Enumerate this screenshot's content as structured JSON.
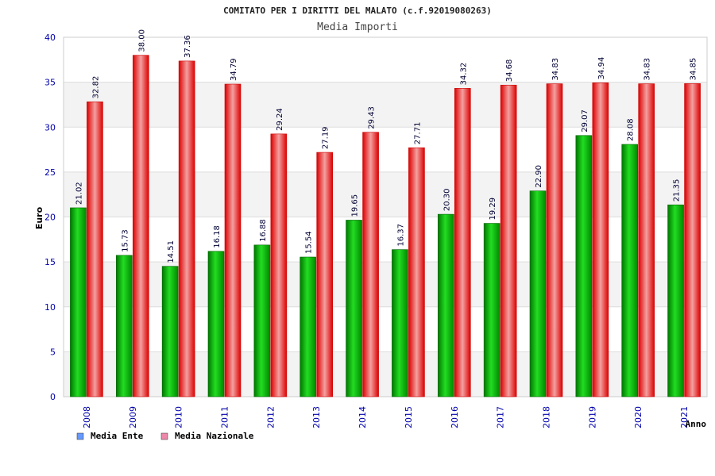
{
  "chart_data": {
    "type": "bar",
    "title": "COMITATO PER I DIRITTI DEL MALATO (c.f.92019080263)",
    "subtitle": "Media Importi",
    "xlabel": "Anno",
    "ylabel": "Euro",
    "ylim": [
      0,
      40
    ],
    "yticks": [
      0,
      5,
      10,
      15,
      20,
      25,
      30,
      35,
      40
    ],
    "categories": [
      "2008",
      "2009",
      "2010",
      "2011",
      "2012",
      "2013",
      "2014",
      "2015",
      "2016",
      "2017",
      "2018",
      "2019",
      "2020",
      "2021"
    ],
    "series": [
      {
        "name": "Media Ente",
        "color": "#00bb00",
        "legend_color": "#6699ff",
        "values": [
          21.02,
          15.73,
          14.51,
          16.18,
          16.88,
          15.54,
          19.65,
          16.37,
          20.3,
          19.29,
          22.9,
          29.07,
          28.08,
          21.35
        ],
        "labels": [
          "21.02",
          "15.73",
          "14.51",
          "16.18",
          "16.88",
          "15.54",
          "19.65",
          "16.37",
          "20.30",
          "19.29",
          "22.90",
          "29.07",
          "28.08",
          "21.35"
        ]
      },
      {
        "name": "Media Nazionale",
        "color": "#ee1111",
        "legend_color": "#ee88aa",
        "values": [
          32.82,
          38.0,
          37.36,
          34.79,
          29.24,
          27.19,
          29.43,
          27.71,
          34.32,
          34.68,
          34.83,
          34.94,
          34.83,
          34.85
        ],
        "labels": [
          "32.82",
          "38.00",
          "37.36",
          "34.79",
          "29.24",
          "27.19",
          "29.43",
          "27.71",
          "34.32",
          "34.68",
          "34.83",
          "34.94",
          "34.83",
          "34.85"
        ]
      }
    ],
    "grid": true,
    "legend_position": "bottom-left"
  }
}
